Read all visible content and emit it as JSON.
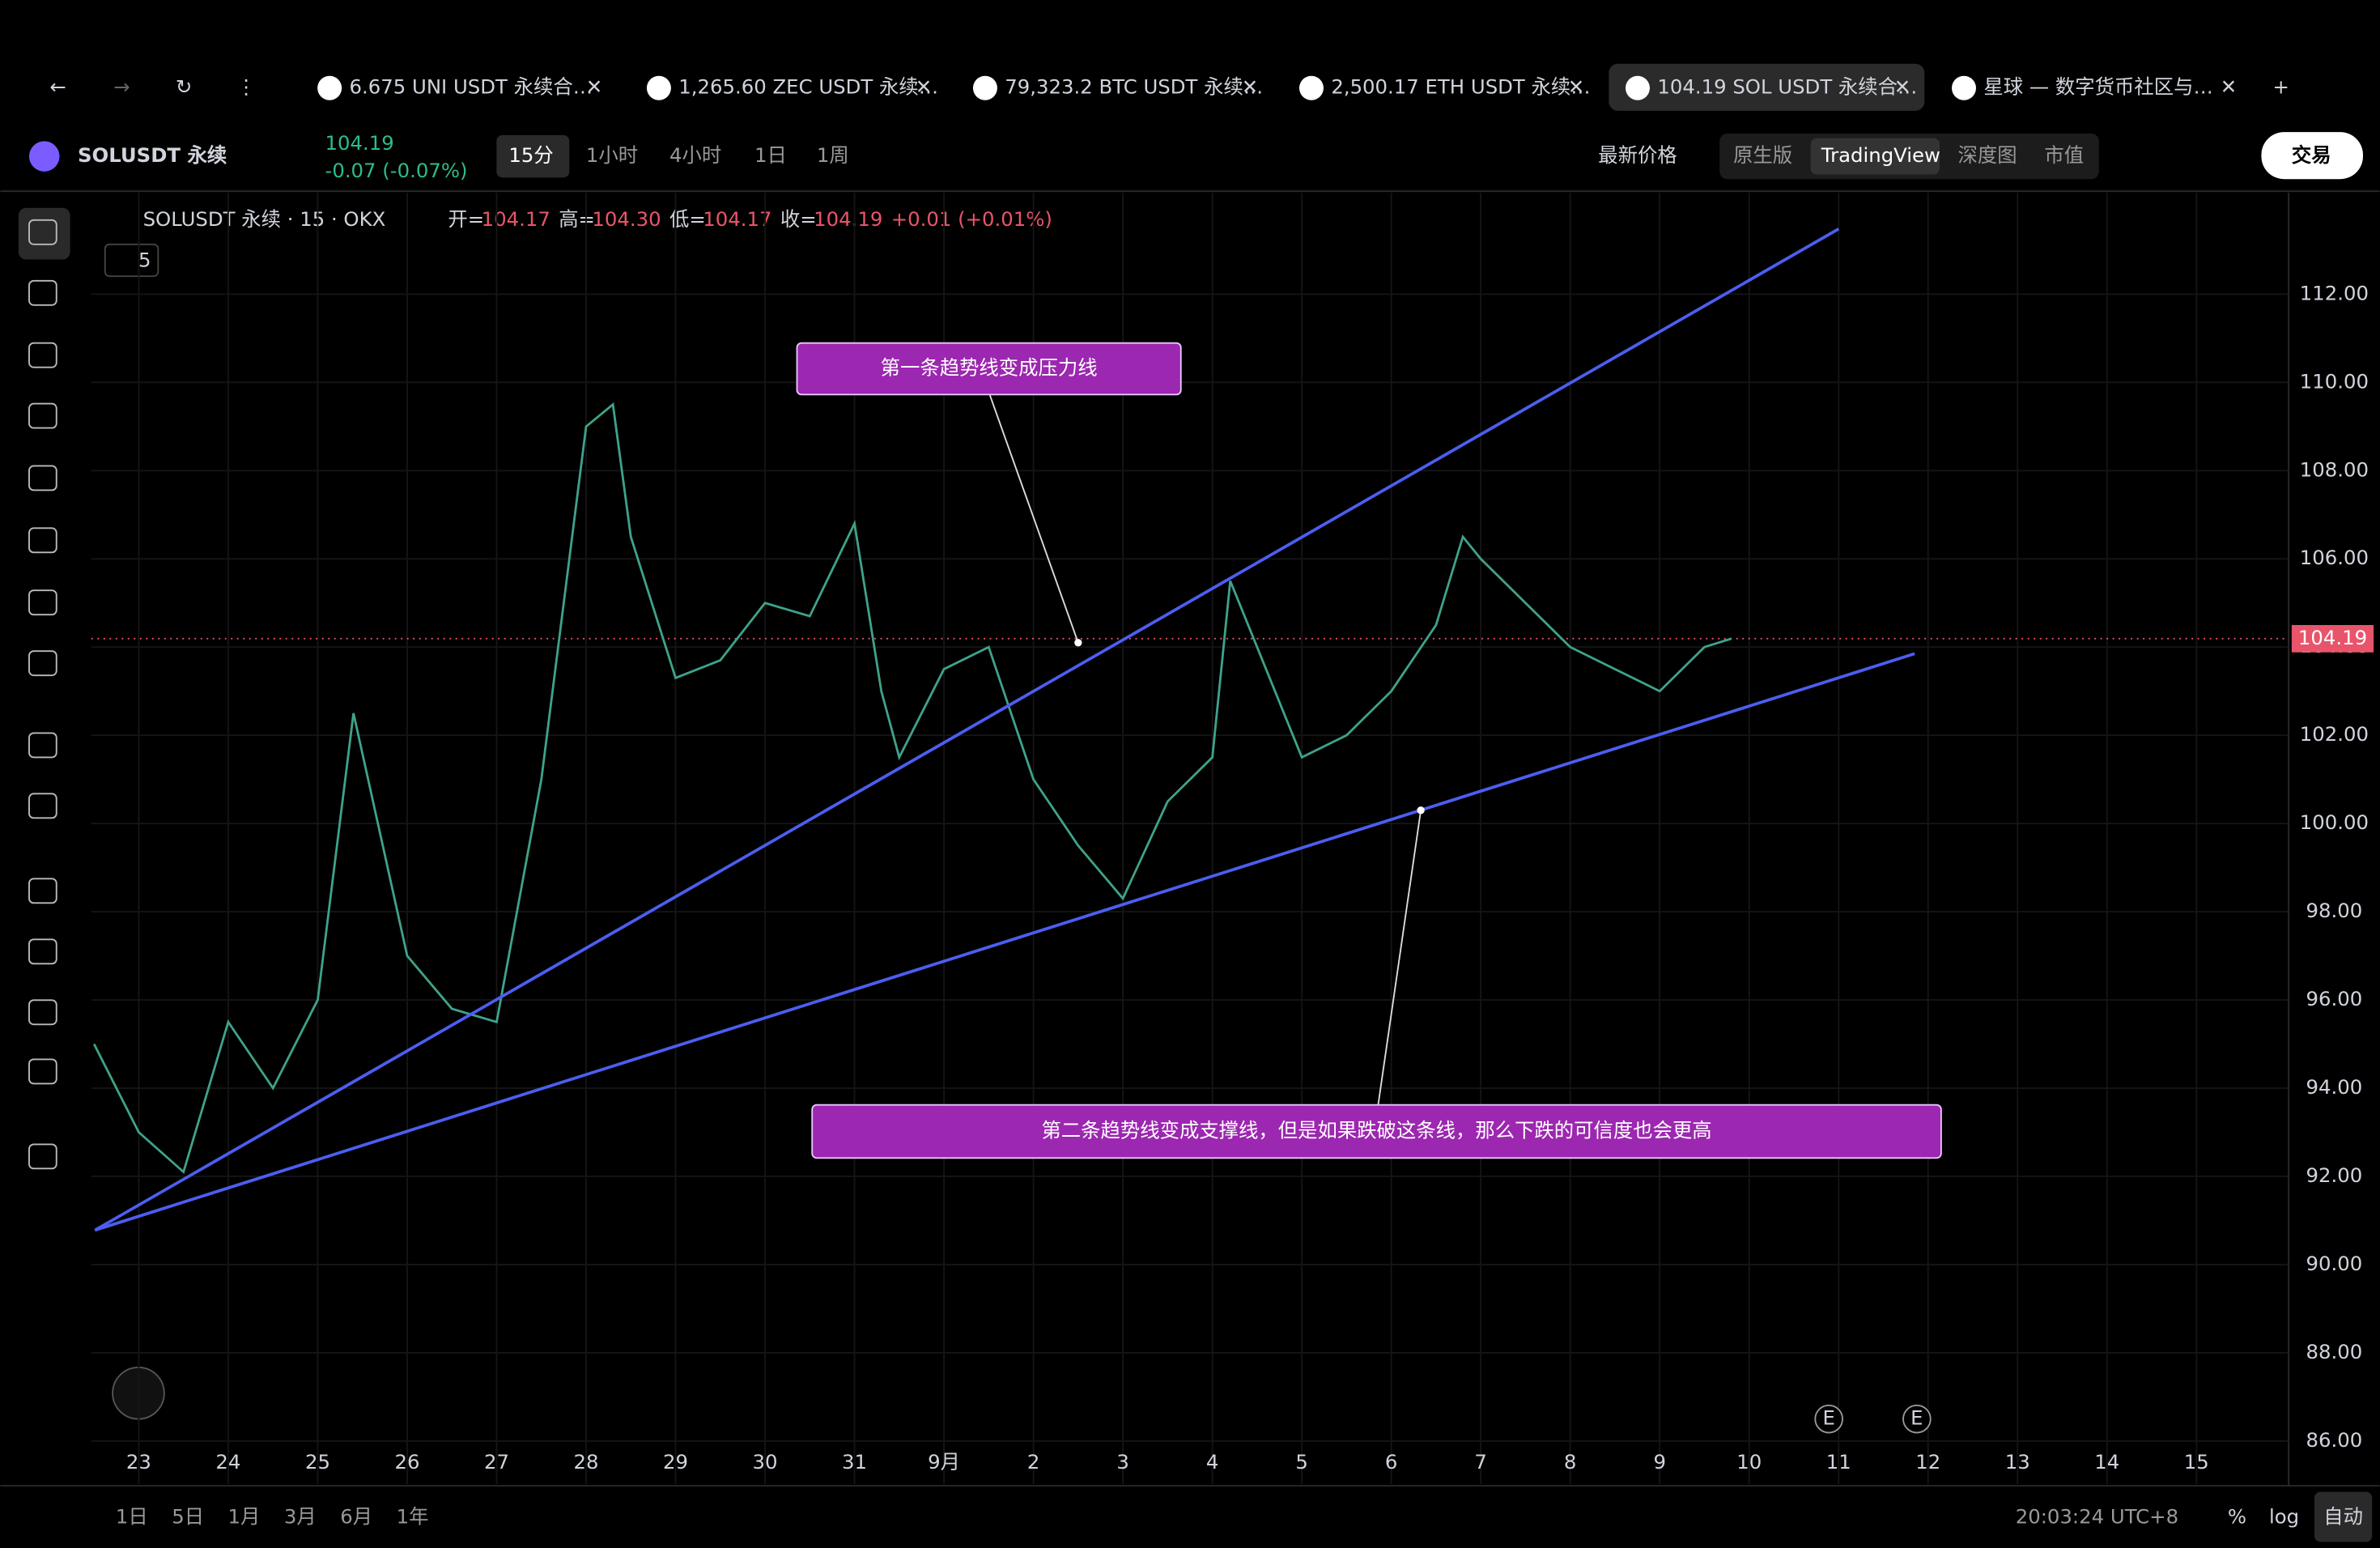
{
  "ui": {
    "tabs": [
      "6.675 UNI USDT 永续合…",
      "1,265.60 ZEC USDT 永续…",
      "79,323.2 BTC USDT 永续…",
      "2,500.17 ETH USDT 永续…",
      "104.19 SOL USDT 永续合…",
      "星球 — 数字货币社区与…"
    ],
    "symbol": "SOLUSDT 永续",
    "last_price": "104.19",
    "change": "-0.07 (-0.07%)",
    "intervals": [
      "15分",
      "1小时",
      "4小时",
      "1日",
      "1周"
    ],
    "price_type": "最新价格",
    "views": [
      "原生版",
      "TradingView",
      "深度图",
      "市值"
    ],
    "trade_button": "交易",
    "legend": {
      "title": "SOLUSDT 永续 · 15 · OKX",
      "fields": [
        [
          "开=",
          "104.17"
        ],
        [
          "高=",
          "104.30"
        ],
        [
          "低=",
          "104.17"
        ],
        [
          "收=",
          "104.19"
        ]
      ],
      "change": "+0.01 (+0.01%)",
      "collapsed_count": "5"
    },
    "ranges": [
      "1日",
      "5日",
      "1月",
      "3月",
      "6月",
      "1年"
    ],
    "clock": "20:03:24 UTC+8",
    "scale_options": [
      "%",
      "log",
      "自动"
    ],
    "events": [
      "E",
      "E"
    ]
  },
  "chart_data": {
    "type": "line",
    "color": "#3fa28a",
    "x": [
      -0.5,
      0,
      0.5,
      1,
      1.5,
      2,
      2.4,
      3,
      3.5,
      4,
      4.5,
      5,
      5.3,
      5.5,
      6,
      6.5,
      7,
      7.5,
      8,
      8.3,
      8.5,
      9,
      9.5,
      10,
      10.5,
      11,
      11.5,
      12,
      12.2,
      12.5,
      13,
      13.5,
      14,
      14.5,
      14.8,
      15,
      15.5,
      16,
      16.5,
      17,
      17.5,
      17.8
    ],
    "values": [
      95,
      93,
      92.1,
      95.5,
      94,
      96,
      102.5,
      97,
      95.8,
      95.5,
      101,
      109,
      109.5,
      106.5,
      103.3,
      103.7,
      105,
      104.7,
      106.8,
      103,
      101.5,
      103.5,
      104,
      101,
      99.5,
      98.3,
      100.5,
      101.5,
      105.5,
      104,
      101.5,
      102,
      103,
      104.5,
      106.5,
      106,
      105,
      104,
      103.5,
      103,
      104,
      104.19
    ],
    "current_price": {
      "value": 104.19,
      "label": "104.19"
    },
    "xlim": [
      -0.53,
      24.03
    ],
    "ylim": [
      85.02,
      114.3
    ],
    "xticks": [
      {
        "value": 0,
        "label": "23"
      },
      {
        "value": 1,
        "label": "24"
      },
      {
        "value": 2,
        "label": "25"
      },
      {
        "value": 3,
        "label": "26"
      },
      {
        "value": 4,
        "label": "27"
      },
      {
        "value": 5,
        "label": "28"
      },
      {
        "value": 6,
        "label": "29"
      },
      {
        "value": 7,
        "label": "30"
      },
      {
        "value": 8,
        "label": "31"
      },
      {
        "value": 9,
        "label": "9月"
      },
      {
        "value": 10,
        "label": "2"
      },
      {
        "value": 11,
        "label": "3"
      },
      {
        "value": 12,
        "label": "4"
      },
      {
        "value": 13,
        "label": "5"
      },
      {
        "value": 14,
        "label": "6"
      },
      {
        "value": 15,
        "label": "7"
      },
      {
        "value": 16,
        "label": "8"
      },
      {
        "value": 17,
        "label": "9"
      },
      {
        "value": 18,
        "label": "10"
      },
      {
        "value": 19,
        "label": "11"
      },
      {
        "value": 20,
        "label": "12"
      },
      {
        "value": 21,
        "label": "13"
      },
      {
        "value": 22,
        "label": "14"
      },
      {
        "value": 23,
        "label": "15"
      }
    ],
    "yticks": [
      {
        "value": 86,
        "label": "86.00"
      },
      {
        "value": 88,
        "label": "88.00"
      },
      {
        "value": 90,
        "label": "90.00"
      },
      {
        "value": 92,
        "label": "92.00"
      },
      {
        "value": 94,
        "label": "94.00"
      },
      {
        "value": 96,
        "label": "96.00"
      },
      {
        "value": 98,
        "label": "98.00"
      },
      {
        "value": 100,
        "label": "100.00"
      },
      {
        "value": 102,
        "label": "102.00"
      },
      {
        "value": 104,
        "label": "104.00"
      },
      {
        "value": 106,
        "label": "106.00"
      },
      {
        "value": 108,
        "label": "108.00"
      },
      {
        "value": 110,
        "label": "110.00"
      },
      {
        "value": 112,
        "label": "112.00"
      }
    ],
    "grid": true,
    "trendlines": [
      {
        "color": "#4c5ef0",
        "x": [
          -0.49,
          19.0
        ],
        "y": [
          90.78,
          113.48
        ]
      },
      {
        "color": "#4c5ef0",
        "x": [
          -0.49,
          19.85
        ],
        "y": [
          90.78,
          103.85
        ]
      }
    ],
    "annotations": [
      {
        "text": "第一条趋势线变成压力线",
        "x": 10.5,
        "y": 104.1
      },
      {
        "text": "第二条趋势线变成支撑线，但是如果跌破这条线，那么下跌的可信度也会更高",
        "x": 14.33,
        "y": 100.3
      }
    ]
  }
}
